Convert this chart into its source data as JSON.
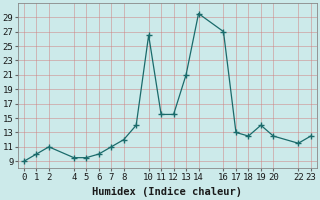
{
  "x": [
    0,
    1,
    2,
    4,
    5,
    6,
    7,
    8,
    9,
    10,
    11,
    12,
    13,
    14,
    16,
    17,
    18,
    19,
    20,
    22,
    23
  ],
  "y": [
    9,
    10,
    11,
    9.5,
    9.5,
    10,
    11,
    12,
    14,
    26.5,
    15.5,
    15.5,
    21,
    29.5,
    27,
    13,
    12.5,
    14,
    12.5,
    11.5,
    12.5
  ],
  "line_color": "#1a6b6b",
  "marker_color": "#1a6b6b",
  "bg_color": "#cceaea",
  "grid_color": "#b8d8d8",
  "xlabel": "Humidex (Indice chaleur)",
  "xlim": [
    -0.5,
    23.5
  ],
  "ylim": [
    8,
    31
  ],
  "yticks": [
    9,
    11,
    13,
    15,
    17,
    19,
    21,
    23,
    25,
    27,
    29
  ],
  "xticks": [
    0,
    1,
    2,
    4,
    5,
    6,
    7,
    8,
    10,
    11,
    12,
    13,
    14,
    16,
    17,
    18,
    19,
    20,
    22,
    23
  ],
  "xtick_labels": [
    "0",
    "1",
    "2",
    "4",
    "5",
    "6",
    "7",
    "8",
    "10",
    "11",
    "12",
    "13",
    "14",
    "16",
    "17",
    "18",
    "19",
    "20",
    "22",
    "23"
  ],
  "ytick_labels": [
    "9",
    "11",
    "13",
    "15",
    "17",
    "19",
    "21",
    "23",
    "25",
    "27",
    "29"
  ],
  "font_size": 6.5,
  "xlabel_fontsize": 7.5
}
